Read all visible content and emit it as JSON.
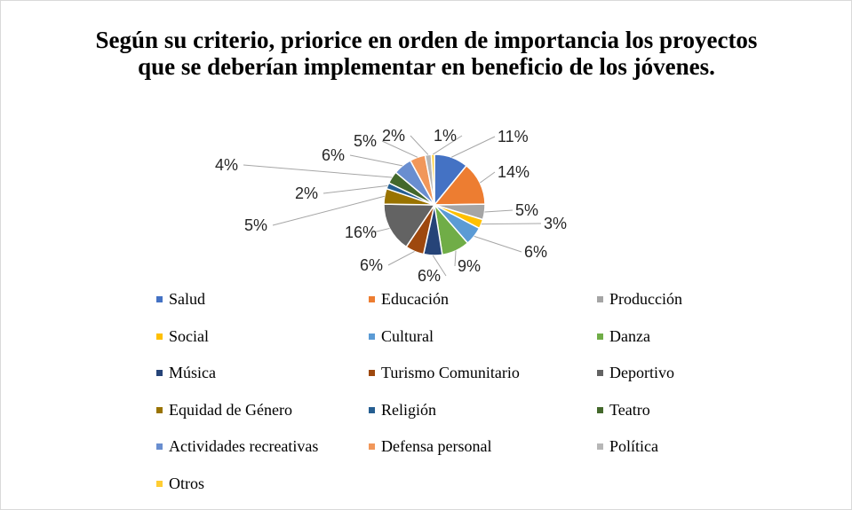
{
  "chart_data": {
    "type": "pie",
    "title": "Según su criterio, priorice en orden de importancia los proyectos que se deberían implementar en beneficio de los jóvenes.",
    "categories": [
      "Salud",
      "Educación",
      "Producción",
      "Social",
      "Cultural",
      "Danza",
      "Música",
      "Turismo Comunitario",
      "Deportivo",
      "Equidad de Género",
      "Religión",
      "Teatro",
      "Actividades recreativas",
      "Defensa personal",
      "Política",
      "Otros"
    ],
    "values": [
      11,
      14,
      5,
      3,
      6,
      9,
      6,
      6,
      16,
      5,
      2,
      4,
      6,
      5,
      2,
      1
    ],
    "data_labels": [
      "11%",
      "14%",
      "5%",
      "3%",
      "6%",
      "9%",
      "6%",
      "6%",
      "16%",
      "5%",
      "2%",
      "4%",
      "6%",
      "5%",
      "2%",
      "1%"
    ],
    "colors": [
      "#4472c4",
      "#ed7d31",
      "#a5a5a5",
      "#ffc000",
      "#5b9bd5",
      "#70ad47",
      "#264478",
      "#9e480e",
      "#636363",
      "#997300",
      "#255e91",
      "#43682b",
      "#698ed0",
      "#f1975a",
      "#b7b7b7",
      "#ffcd33"
    ],
    "legend_position": "bottom"
  }
}
